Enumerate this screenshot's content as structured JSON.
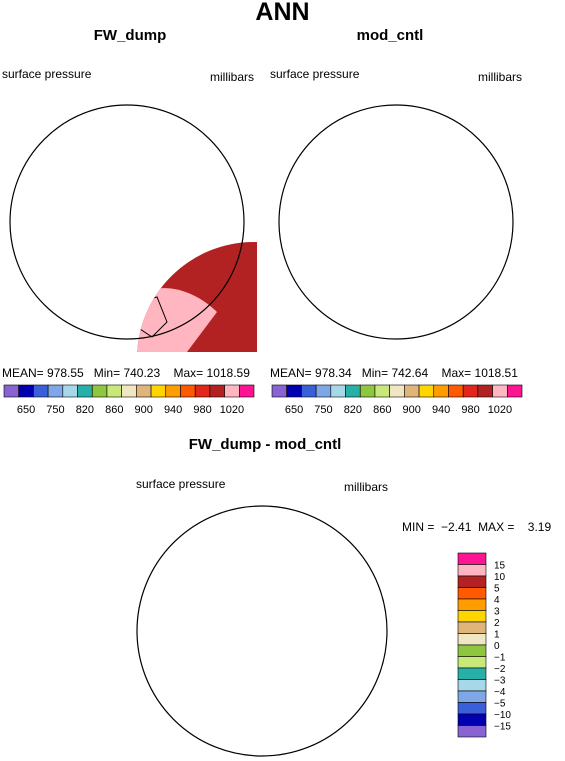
{
  "title": "ANN",
  "panels": [
    {
      "title": "FW_dump",
      "left_label": "surface pressure",
      "right_label": "millibars",
      "stats": {
        "mean": "978.55",
        "min": "740.23",
        "max": "1018.59"
      }
    },
    {
      "title": "mod_cntl",
      "left_label": "surface pressure",
      "right_label": "millibars",
      "stats": {
        "mean": "978.34",
        "min": "742.64",
        "max": "1018.51"
      }
    }
  ],
  "stat_labels": {
    "mean": "MEAN=",
    "min": "Min=",
    "max": "Max="
  },
  "colorbar": {
    "colors": [
      "#8a63d2",
      "#0000b0",
      "#3a5fd9",
      "#7ea7e8",
      "#a6d8e8",
      "#26b0a8",
      "#8ec63f",
      "#c8e87a",
      "#f0e6c2",
      "#e0b57a",
      "#ffd500",
      "#ff9d00",
      "#ff5a00",
      "#e0271a",
      "#b22222",
      "#ffb6c1",
      "#ff1493"
    ],
    "ticks": [
      "650",
      "750",
      "820",
      "860",
      "900",
      "940",
      "980",
      "1020"
    ]
  },
  "diff": {
    "title": "FW_dump - mod_cntl",
    "left_label": "surface pressure",
    "right_label": "millibars",
    "stats": {
      "min_label": "MIN =",
      "min": "−2.41",
      "max_label": "MAX =",
      "max": "3.19"
    },
    "legend_colors": [
      "#ff1493",
      "#ffb6c1",
      "#b22222",
      "#ff5a00",
      "#ff9d00",
      "#ffd500",
      "#e0b57a",
      "#f0e6c2",
      "#8ec63f",
      "#c8e87a",
      "#26b0a8",
      "#a6d8e8",
      "#7ea7e8",
      "#3a5fd9",
      "#0000b0",
      "#8a63d2"
    ],
    "legend_ticks": [
      "15",
      "10",
      "5",
      "4",
      "3",
      "2",
      "1",
      "0",
      "−1",
      "−2",
      "−3",
      "−4",
      "−5",
      "−10",
      "−15"
    ]
  }
}
